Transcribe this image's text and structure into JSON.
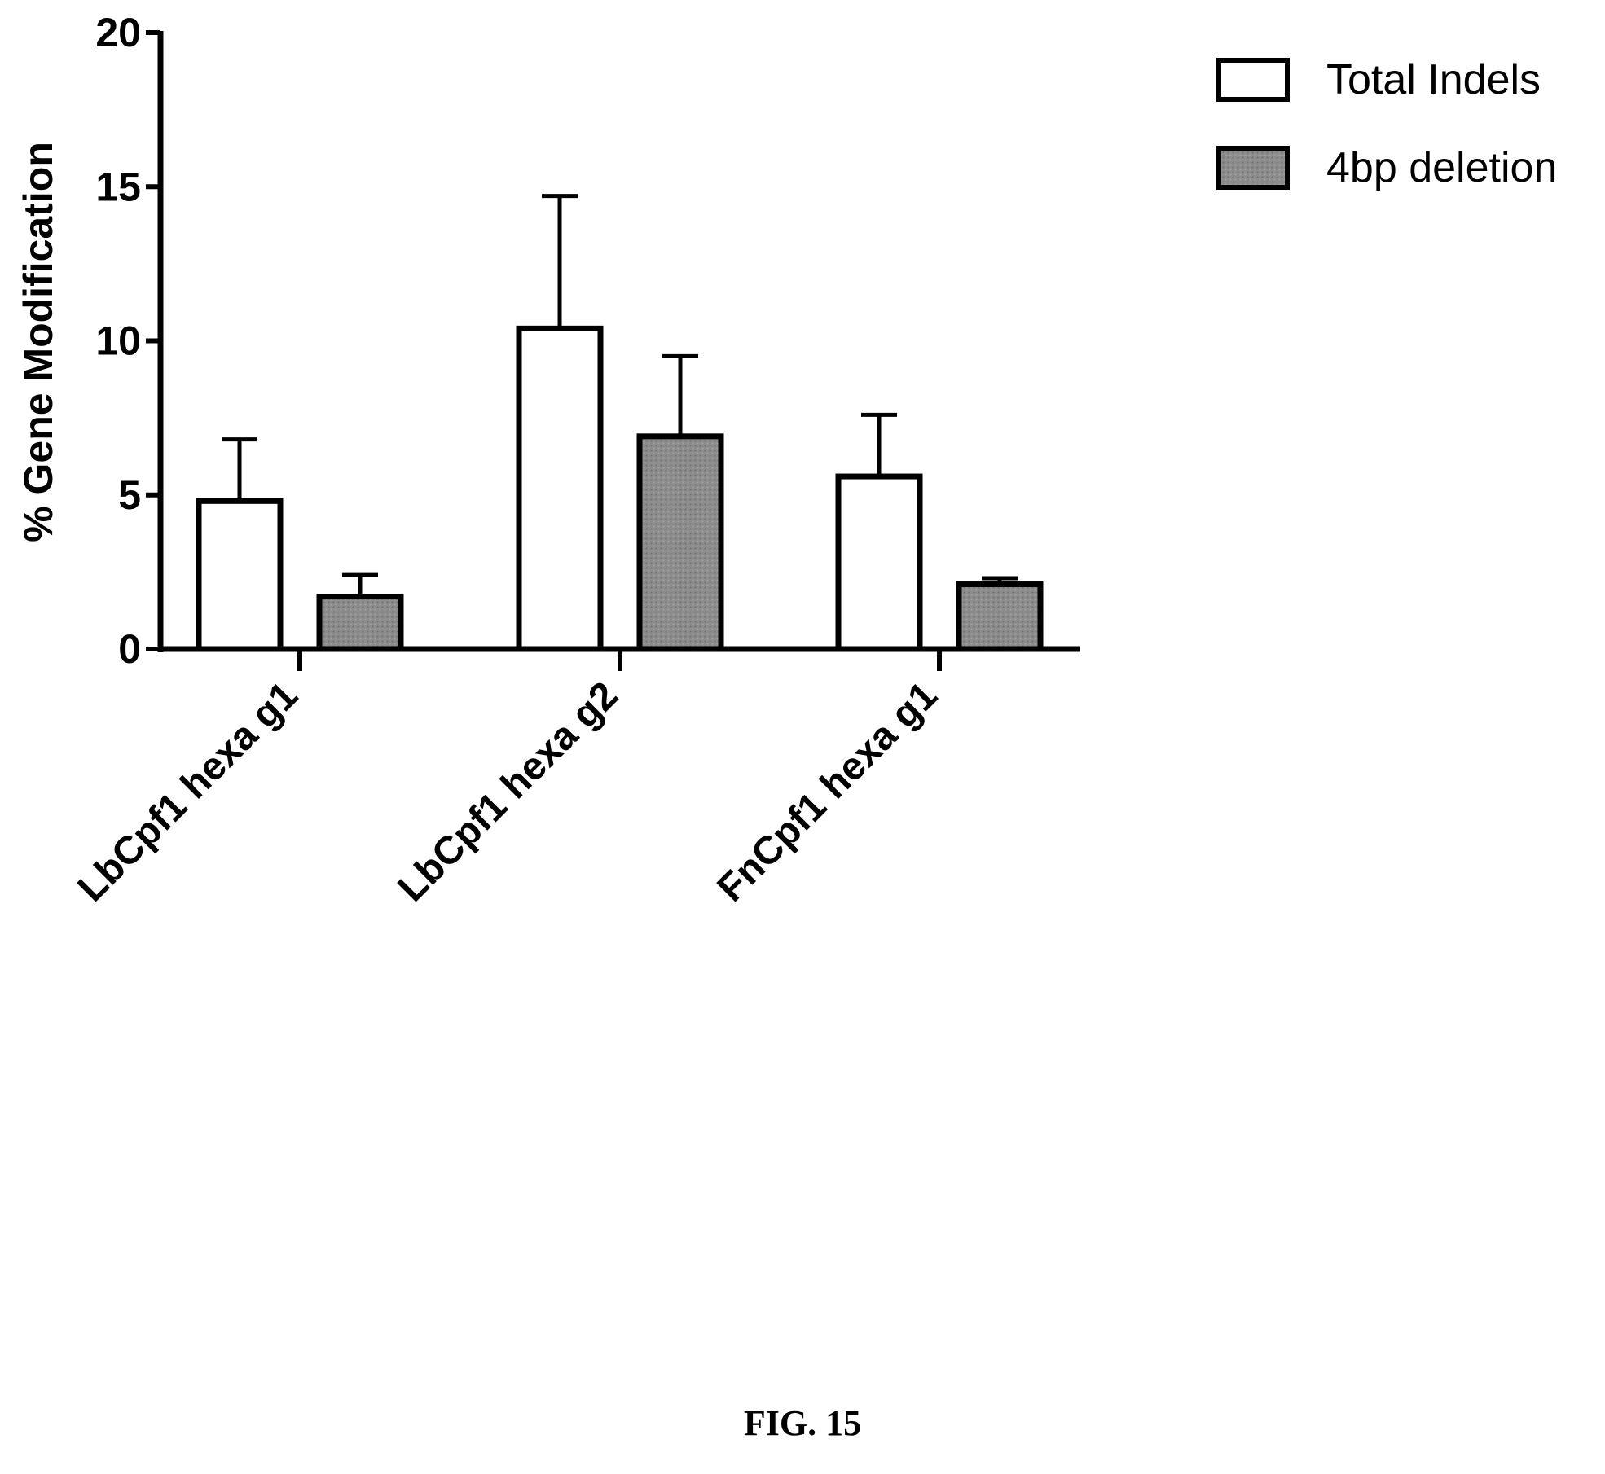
{
  "chart_data": {
    "type": "bar",
    "ylabel": "% Gene Modification",
    "xlabel": "",
    "ylim": [
      0,
      20
    ],
    "yticks": [
      0,
      5,
      10,
      15,
      20
    ],
    "categories": [
      "LbCpf1 hexa g1",
      "LbCpf1 hexa g2",
      "FnCpf1 hexa g1"
    ],
    "series": [
      {
        "name": "Total Indels",
        "values": [
          4.8,
          10.4,
          5.6
        ],
        "error": [
          2.0,
          4.3,
          2.0
        ],
        "fill": "#ffffff"
      },
      {
        "name": "4bp deletion",
        "values": [
          1.7,
          6.9,
          2.1
        ],
        "error": [
          0.7,
          2.6,
          0.2
        ],
        "fill": "#8a8a8a"
      }
    ],
    "legend_position": "top-right",
    "grid": false,
    "error_bars": "upper"
  },
  "caption": "FIG. 15"
}
